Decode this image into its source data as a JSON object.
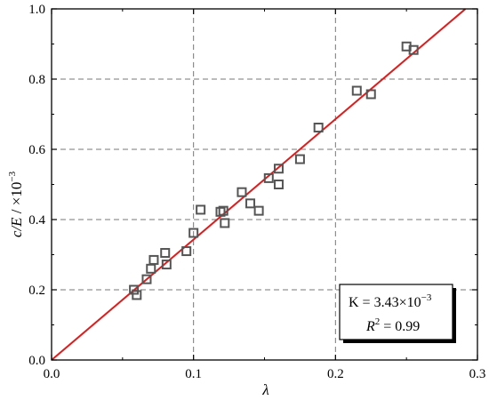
{
  "chart_data": {
    "type": "scatter",
    "xlabel": "λ",
    "ylabel_main": "c/E",
    "ylabel_unit": " / ×10",
    "ylabel_exp": "−3",
    "xlim": [
      0,
      0.3
    ],
    "ylim": [
      0,
      1.0
    ],
    "x_ticks": [
      0.0,
      0.1,
      0.2,
      0.3
    ],
    "x_tick_labels": [
      "0.0",
      "0.1",
      "0.2",
      "0.3"
    ],
    "y_ticks": [
      0.0,
      0.2,
      0.4,
      0.6,
      0.8,
      1.0
    ],
    "y_tick_labels": [
      "0.0",
      "0.2",
      "0.4",
      "0.6",
      "0.8",
      "1.0"
    ],
    "grid": true,
    "grid_x": [
      0.1,
      0.2
    ],
    "grid_y": [
      0.2,
      0.4,
      0.6,
      0.8
    ],
    "points": [
      {
        "x": 0.058,
        "y": 0.2
      },
      {
        "x": 0.06,
        "y": 0.185
      },
      {
        "x": 0.067,
        "y": 0.23
      },
      {
        "x": 0.07,
        "y": 0.26
      },
      {
        "x": 0.072,
        "y": 0.285
      },
      {
        "x": 0.08,
        "y": 0.305
      },
      {
        "x": 0.081,
        "y": 0.272
      },
      {
        "x": 0.095,
        "y": 0.31
      },
      {
        "x": 0.1,
        "y": 0.362
      },
      {
        "x": 0.105,
        "y": 0.428
      },
      {
        "x": 0.119,
        "y": 0.422
      },
      {
        "x": 0.121,
        "y": 0.425
      },
      {
        "x": 0.122,
        "y": 0.39
      },
      {
        "x": 0.134,
        "y": 0.478
      },
      {
        "x": 0.14,
        "y": 0.446
      },
      {
        "x": 0.146,
        "y": 0.425
      },
      {
        "x": 0.153,
        "y": 0.518
      },
      {
        "x": 0.16,
        "y": 0.5
      },
      {
        "x": 0.16,
        "y": 0.545
      },
      {
        "x": 0.175,
        "y": 0.572
      },
      {
        "x": 0.188,
        "y": 0.662
      },
      {
        "x": 0.215,
        "y": 0.767
      },
      {
        "x": 0.225,
        "y": 0.757
      },
      {
        "x": 0.25,
        "y": 0.893
      },
      {
        "x": 0.255,
        "y": 0.883
      }
    ],
    "fit_line": {
      "slope": 3.43,
      "intercept": 0,
      "x_range": [
        0,
        0.2915
      ]
    },
    "annotation": {
      "k_label": "K = 3.43×10",
      "k_exp": "−3",
      "r2_label_main": "R",
      "r2_label_exp": "2",
      "r2_value": " = 0.99",
      "placement": "bottom-right"
    },
    "colors": {
      "line": "#e01b1b",
      "marker": "#555555",
      "grid": "#777777",
      "axis": "#000000"
    }
  }
}
